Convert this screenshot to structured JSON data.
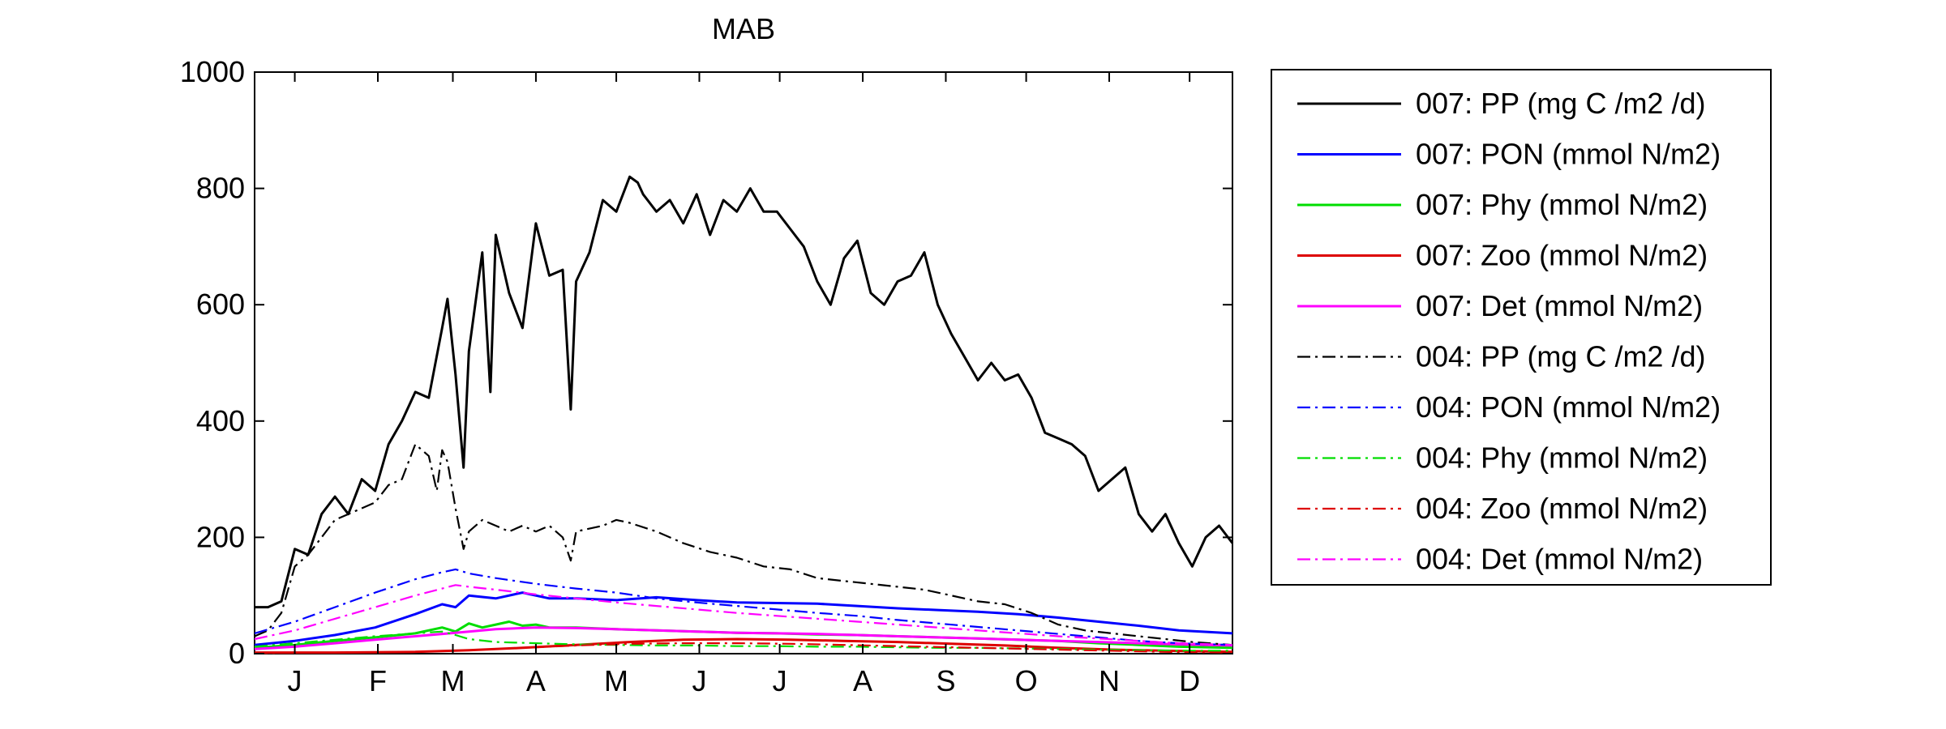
{
  "chart_data": {
    "type": "line",
    "title": "MAB",
    "xlabel": "",
    "ylabel": "",
    "xlim": [
      0,
      365
    ],
    "ylim": [
      0,
      1000
    ],
    "grid": false,
    "legend_position": "outside-right",
    "y_ticks": [
      0,
      200,
      400,
      600,
      800,
      1000
    ],
    "y_tick_labels": [
      "0",
      "200",
      "400",
      "600",
      "800",
      "1000"
    ],
    "x_tick_positions": [
      15,
      46,
      74,
      105,
      135,
      166,
      196,
      227,
      258,
      288,
      319,
      349
    ],
    "x_tick_labels": [
      "J",
      "F",
      "M",
      "A",
      "M",
      "J",
      "J",
      "A",
      "S",
      "O",
      "N",
      "D"
    ],
    "series": [
      {
        "name": "007: PP (mg C /m2 /d)",
        "color": "#000000",
        "style": "solid",
        "x": [
          0,
          5,
          10,
          15,
          20,
          25,
          30,
          35,
          40,
          45,
          50,
          55,
          60,
          65,
          70,
          72,
          75,
          78,
          80,
          85,
          88,
          90,
          95,
          100,
          105,
          110,
          115,
          118,
          120,
          125,
          130,
          135,
          140,
          143,
          145,
          150,
          155,
          160,
          165,
          170,
          175,
          180,
          185,
          190,
          195,
          200,
          205,
          210,
          215,
          220,
          225,
          230,
          235,
          240,
          245,
          250,
          255,
          260,
          265,
          270,
          275,
          280,
          285,
          290,
          295,
          300,
          305,
          310,
          315,
          320,
          325,
          330,
          335,
          340,
          345,
          350,
          355,
          360,
          365
        ],
        "y": [
          80,
          80,
          90,
          180,
          170,
          240,
          270,
          240,
          300,
          280,
          360,
          400,
          450,
          440,
          560,
          610,
          480,
          320,
          520,
          690,
          450,
          720,
          620,
          560,
          740,
          650,
          660,
          420,
          640,
          690,
          780,
          760,
          820,
          810,
          790,
          760,
          780,
          740,
          790,
          720,
          780,
          760,
          800,
          760,
          760,
          730,
          700,
          640,
          600,
          680,
          710,
          620,
          600,
          640,
          650,
          690,
          600,
          550,
          510,
          470,
          500,
          470,
          480,
          440,
          380,
          370,
          360,
          340,
          280,
          300,
          320,
          240,
          210,
          240,
          190,
          150,
          200,
          220,
          190
        ]
      },
      {
        "name": "007: PON (mmol N/m2)",
        "color": "#0000ff",
        "style": "solid",
        "x": [
          0,
          15,
          30,
          45,
          60,
          70,
          75,
          80,
          90,
          100,
          110,
          120,
          135,
          150,
          165,
          180,
          195,
          210,
          225,
          240,
          255,
          270,
          285,
          300,
          315,
          330,
          345,
          365
        ],
        "y": [
          15,
          22,
          32,
          45,
          68,
          85,
          80,
          100,
          95,
          105,
          95,
          95,
          92,
          97,
          92,
          88,
          87,
          86,
          82,
          78,
          75,
          72,
          68,
          62,
          55,
          48,
          40,
          35
        ]
      },
      {
        "name": "007: Phy (mmol N/m2)",
        "color": "#00dd00",
        "style": "solid",
        "x": [
          0,
          15,
          30,
          45,
          60,
          70,
          75,
          80,
          85,
          90,
          95,
          100,
          105,
          110,
          120,
          135,
          150,
          165,
          180,
          195,
          210,
          225,
          240,
          255,
          270,
          285,
          300,
          315,
          330,
          345,
          365
        ],
        "y": [
          10,
          15,
          22,
          28,
          35,
          45,
          38,
          52,
          45,
          50,
          55,
          48,
          50,
          45,
          45,
          42,
          40,
          38,
          36,
          35,
          33,
          32,
          30,
          28,
          26,
          24,
          22,
          18,
          15,
          12,
          10
        ]
      },
      {
        "name": "007: Zoo (mmol N/m2)",
        "color": "#dd0000",
        "style": "solid",
        "x": [
          0,
          30,
          60,
          80,
          100,
          120,
          140,
          160,
          180,
          200,
          220,
          240,
          260,
          280,
          300,
          320,
          340,
          365
        ],
        "y": [
          2,
          2,
          3,
          6,
          10,
          15,
          20,
          24,
          25,
          24,
          22,
          20,
          17,
          14,
          10,
          7,
          5,
          3
        ]
      },
      {
        "name": "007: Det (mmol N/m2)",
        "color": "#ff00ff",
        "style": "solid",
        "x": [
          0,
          15,
          30,
          45,
          60,
          75,
          90,
          105,
          120,
          135,
          150,
          165,
          180,
          195,
          210,
          225,
          240,
          255,
          270,
          285,
          300,
          315,
          330,
          345,
          365
        ],
        "y": [
          8,
          12,
          18,
          24,
          30,
          36,
          42,
          45,
          44,
          42,
          40,
          38,
          36,
          35,
          34,
          32,
          30,
          28,
          26,
          24,
          22,
          20,
          18,
          16,
          14
        ]
      },
      {
        "name": "004: PP (mg C /m2 /d)",
        "color": "#000000",
        "style": "dashdot",
        "x": [
          0,
          5,
          10,
          15,
          20,
          25,
          30,
          35,
          40,
          45,
          50,
          55,
          60,
          65,
          68,
          70,
          72,
          75,
          78,
          80,
          85,
          90,
          95,
          100,
          105,
          110,
          115,
          118,
          120,
          125,
          130,
          135,
          140,
          150,
          160,
          170,
          180,
          190,
          200,
          210,
          220,
          230,
          240,
          250,
          260,
          270,
          280,
          290,
          300,
          310,
          320,
          330,
          340,
          350,
          365
        ],
        "y": [
          30,
          40,
          70,
          150,
          170,
          200,
          230,
          240,
          250,
          260,
          290,
          300,
          360,
          340,
          280,
          350,
          330,
          250,
          180,
          210,
          230,
          220,
          210,
          220,
          210,
          220,
          200,
          160,
          210,
          215,
          220,
          230,
          225,
          210,
          190,
          175,
          165,
          150,
          145,
          130,
          125,
          120,
          115,
          110,
          100,
          90,
          85,
          70,
          50,
          40,
          35,
          30,
          25,
          20,
          15
        ]
      },
      {
        "name": "004: PON (mmol N/m2)",
        "color": "#0000ff",
        "style": "dashdot",
        "x": [
          0,
          15,
          30,
          45,
          60,
          70,
          75,
          80,
          90,
          105,
          120,
          135,
          150,
          165,
          180,
          195,
          210,
          225,
          240,
          255,
          270,
          285,
          300,
          315,
          330,
          345,
          365
        ],
        "y": [
          35,
          55,
          80,
          105,
          128,
          140,
          145,
          138,
          130,
          120,
          112,
          105,
          95,
          88,
          82,
          76,
          70,
          65,
          58,
          52,
          46,
          40,
          34,
          28,
          22,
          18,
          15
        ]
      },
      {
        "name": "004: Phy (mmol N/m2)",
        "color": "#00dd00",
        "style": "dashdot",
        "x": [
          0,
          15,
          30,
          45,
          60,
          70,
          75,
          80,
          90,
          105,
          120,
          135,
          150,
          165,
          180,
          195,
          210,
          225,
          240,
          255,
          270,
          285,
          300,
          315,
          330,
          345,
          365
        ],
        "y": [
          12,
          18,
          24,
          30,
          35,
          38,
          32,
          25,
          20,
          18,
          16,
          15,
          14,
          14,
          13,
          13,
          12,
          12,
          11,
          10,
          10,
          9,
          8,
          7,
          6,
          5,
          5
        ]
      },
      {
        "name": "004: Zoo (mmol N/m2)",
        "color": "#dd0000",
        "style": "dashdot",
        "x": [
          0,
          30,
          60,
          80,
          100,
          120,
          140,
          160,
          180,
          200,
          220,
          240,
          260,
          280,
          300,
          320,
          340,
          365
        ],
        "y": [
          1,
          2,
          3,
          6,
          10,
          14,
          17,
          18,
          18,
          17,
          15,
          13,
          11,
          9,
          7,
          5,
          3,
          2
        ]
      },
      {
        "name": "004: Det (mmol N/m2)",
        "color": "#ff00ff",
        "style": "dashdot",
        "x": [
          0,
          15,
          30,
          45,
          60,
          70,
          75,
          80,
          90,
          105,
          120,
          135,
          150,
          165,
          180,
          195,
          210,
          225,
          240,
          255,
          270,
          285,
          300,
          315,
          330,
          345,
          365
        ],
        "y": [
          25,
          40,
          60,
          80,
          100,
          112,
          118,
          115,
          110,
          102,
          95,
          88,
          82,
          76,
          70,
          65,
          60,
          55,
          50,
          45,
          40,
          35,
          30,
          26,
          22,
          18,
          15
        ]
      }
    ]
  }
}
